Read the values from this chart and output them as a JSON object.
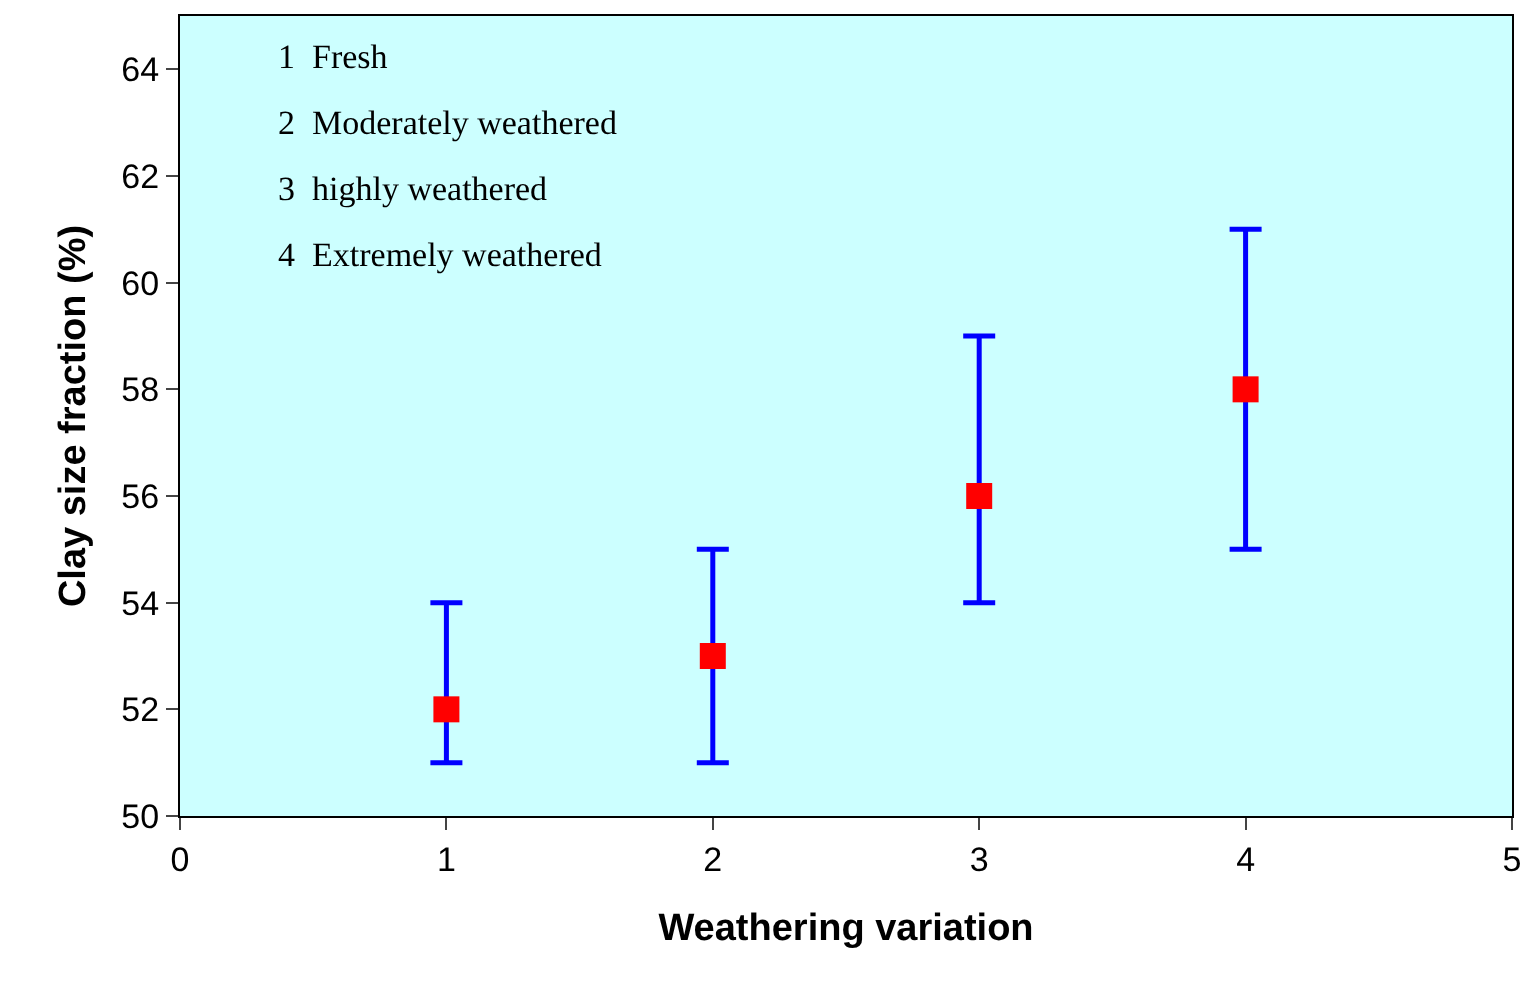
{
  "chart_data": {
    "type": "scatter",
    "xlabel": "Weathering variation",
    "ylabel": "Clay size fraction (%)",
    "x": [
      1,
      2,
      3,
      4
    ],
    "series": [
      {
        "color": "#ff0000",
        "values": [
          52,
          53,
          56,
          58
        ],
        "errors": [
          [
            51,
            54
          ],
          [
            51,
            55
          ],
          [
            54,
            59
          ],
          [
            55,
            61
          ]
        ]
      }
    ],
    "xlim": [
      0,
      5
    ],
    "xticks": [
      0,
      1,
      2,
      3,
      4,
      5
    ],
    "ylim": [
      50,
      65
    ],
    "yticks": [
      50,
      52,
      54,
      56,
      58,
      60,
      62,
      64
    ],
    "marker": "square",
    "grid": false,
    "annotations": [
      "1  Fresh",
      "2  Moderately weathered",
      "3  highly weathered",
      "4  Extremely weathered"
    ]
  }
}
